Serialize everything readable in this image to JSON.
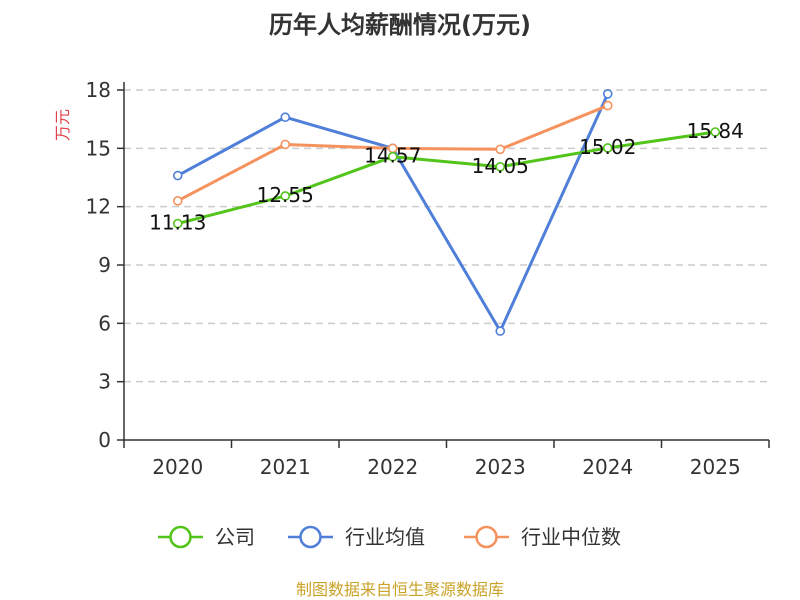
{
  "chart_data": {
    "type": "line",
    "title": "历年人均薪酬情况(万元)",
    "ylabel": "万元",
    "xlabel": "",
    "categories": [
      "2020",
      "2021",
      "2022",
      "2023",
      "2024",
      "2025"
    ],
    "ylim": [
      0,
      18
    ],
    "yticks": [
      0,
      3,
      6,
      9,
      12,
      15,
      18
    ],
    "grid": true,
    "legend_position": "bottom",
    "series": [
      {
        "name": "公司",
        "color": "#52c41a",
        "values": [
          11.13,
          12.55,
          14.57,
          14.05,
          15.02,
          15.84
        ],
        "labels": [
          "11.13",
          "12.55",
          "14.57",
          "14.05",
          "15.02",
          "15.84"
        ]
      },
      {
        "name": "行业均值",
        "color": "#4f7fd9",
        "values": [
          13.6,
          16.6,
          15.0,
          5.6,
          17.8,
          null
        ]
      },
      {
        "name": "行业中位数",
        "color": "#f5925e",
        "values": [
          12.3,
          15.2,
          15.0,
          14.95,
          17.2,
          null
        ]
      }
    ],
    "source": "制图数据来自恒生聚源数据库"
  },
  "colors": {
    "axis": "#333333",
    "grid": "#cccccc",
    "ylabel": "#e0414a",
    "source": "#c9a227"
  }
}
